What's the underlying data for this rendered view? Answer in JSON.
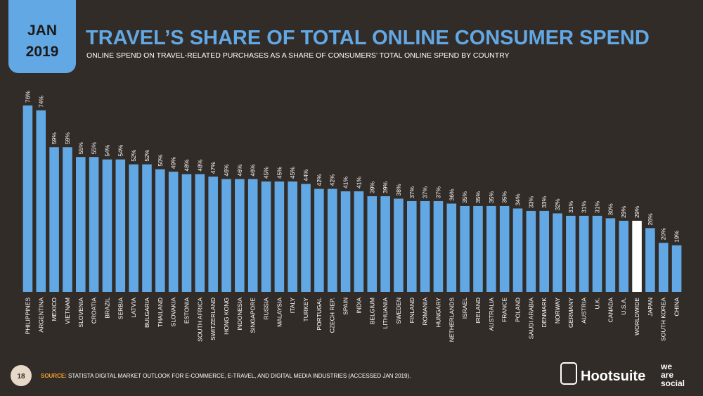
{
  "badge": {
    "month": "JAN",
    "year": "2019"
  },
  "chart_data": {
    "type": "bar",
    "title": "TRAVEL’S SHARE OF TOTAL ONLINE CONSUMER SPEND",
    "subtitle": "ONLINE SPEND ON TRAVEL-RELATED PURCHASES AS A SHARE OF CONSUMERS’ TOTAL ONLINE SPEND BY COUNTRY",
    "categories": [
      "PHILIPPINES",
      "ARGENTINA",
      "MEXICO",
      "VIETNAM",
      "SLOVENIA",
      "CROATIA",
      "BRAZIL",
      "SERBIA",
      "LATVIA",
      "BULGARIA",
      "THAILAND",
      "SLOVAKIA",
      "ESTONIA",
      "SOUTH AFRICA",
      "SWITZERLAND",
      "HONG KONG",
      "INDONESIA",
      "SINGAPORE",
      "RUSSIA",
      "MALAYSIA",
      "ITALY",
      "TURKEY",
      "PORTUGAL",
      "CZECH REP.",
      "SPAIN",
      "INDIA",
      "BELGIUM",
      "LITHUANIA",
      "SWEDEN",
      "FINLAND",
      "ROMANIA",
      "HUNGARY",
      "NETHERLANDS",
      "ISRAEL",
      "IRELAND",
      "AUSTRALIA",
      "FRANCE",
      "POLAND",
      "SAUDI ARABIA",
      "DENMARK",
      "NORWAY",
      "GERMANY",
      "AUSTRIA",
      "U.K.",
      "CANADA",
      "U.S.A.",
      "WORLDWIDE",
      "JAPAN",
      "SOUTH KOREA",
      "CHINA"
    ],
    "values": [
      76,
      74,
      59,
      59,
      55,
      55,
      54,
      54,
      52,
      52,
      50,
      49,
      48,
      48,
      47,
      46,
      46,
      46,
      45,
      45,
      45,
      44,
      42,
      42,
      41,
      41,
      39,
      39,
      38,
      37,
      37,
      37,
      36,
      35,
      35,
      35,
      35,
      34,
      33,
      33,
      32,
      31,
      31,
      31,
      30,
      29,
      29,
      26,
      20,
      19
    ],
    "value_labels": [
      "76%",
      "74%",
      "59%",
      "59%",
      "55%",
      "55%",
      "54%",
      "54%",
      "52%",
      "52%",
      "50%",
      "49%",
      "48%",
      "48%",
      "47%",
      "46%",
      "46%",
      "46%",
      "45%",
      "45%",
      "45%",
      "44%",
      "42%",
      "42%",
      "41%",
      "41%",
      "39%",
      "39%",
      "38%",
      "37%",
      "37%",
      "37%",
      "36%",
      "35%",
      "35%",
      "35%",
      "35%",
      "34%",
      "33%",
      "33%",
      "32%",
      "31%",
      "31%",
      "31%",
      "30%",
      "29%",
      "29%",
      "26%",
      "20%",
      "19%"
    ],
    "colors": [
      "#62a8e5",
      "#62a8e5",
      "#62a8e5",
      "#62a8e5",
      "#62a8e5",
      "#62a8e5",
      "#62a8e5",
      "#62a8e5",
      "#62a8e5",
      "#62a8e5",
      "#62a8e5",
      "#62a8e5",
      "#62a8e5",
      "#62a8e5",
      "#62a8e5",
      "#62a8e5",
      "#62a8e5",
      "#62a8e5",
      "#62a8e5",
      "#62a8e5",
      "#62a8e5",
      "#62a8e5",
      "#62a8e5",
      "#62a8e5",
      "#62a8e5",
      "#62a8e5",
      "#62a8e5",
      "#62a8e5",
      "#62a8e5",
      "#62a8e5",
      "#62a8e5",
      "#62a8e5",
      "#62a8e5",
      "#62a8e5",
      "#62a8e5",
      "#62a8e5",
      "#62a8e5",
      "#62a8e5",
      "#62a8e5",
      "#62a8e5",
      "#62a8e5",
      "#62a8e5",
      "#62a8e5",
      "#62a8e5",
      "#62a8e5",
      "#62a8e5",
      "#ffffff",
      "#62a8e5",
      "#62a8e5",
      "#62a8e5"
    ],
    "ylim": [
      0,
      80
    ]
  },
  "footer": {
    "page": "18",
    "source_label": "SOURCE:",
    "source": "STATISTA DIGITAL MARKET OUTLOOK FOR E-COMMERCE, E-TRAVEL, AND DIGITAL MEDIA INDUSTRIES (ACCESSED JAN 2019).",
    "logo1": "Hootsuite",
    "logo2": [
      "we",
      "are",
      "social"
    ]
  }
}
